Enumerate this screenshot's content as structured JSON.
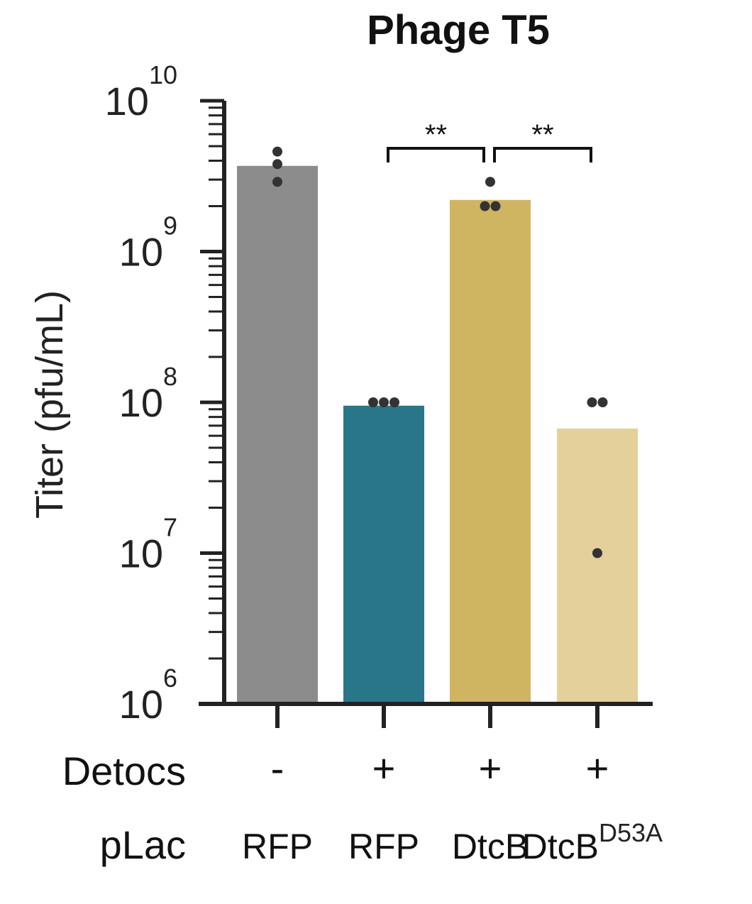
{
  "chart_data": {
    "type": "bar",
    "title": "Phage T5",
    "ylabel": "Titer (pfu/mL)",
    "xlabel": "",
    "yscale": "log",
    "ylim": [
      1000000,
      10000000000
    ],
    "yticks": [
      {
        "base": "10",
        "exp": "6",
        "value": 1000000
      },
      {
        "base": "10",
        "exp": "7",
        "value": 10000000
      },
      {
        "base": "10",
        "exp": "8",
        "value": 100000000
      },
      {
        "base": "10",
        "exp": "9",
        "value": 1000000000
      },
      {
        "base": "10",
        "exp": "10",
        "value": 10000000000
      }
    ],
    "row_labels": [
      "Detocs",
      "pLac"
    ],
    "categories": [
      {
        "detocs": "-",
        "plac": "RFP",
        "plac_sup": ""
      },
      {
        "detocs": "+",
        "plac": "RFP",
        "plac_sup": ""
      },
      {
        "detocs": "+",
        "plac": "DtcB",
        "plac_sup": ""
      },
      {
        "detocs": "+",
        "plac": "DtcB",
        "plac_sup": "D53A"
      }
    ],
    "values": [
      3700000000,
      95000000,
      2200000000,
      67000000
    ],
    "colors": [
      "#8c8c8c",
      "#297688",
      "#cfb462",
      "#e3d09b"
    ],
    "points": [
      [
        4600000000,
        3800000000,
        2900000000
      ],
      [
        100000000,
        100000000,
        100000000
      ],
      [
        2900000000,
        2000000000,
        2000000000
      ],
      [
        100000000,
        100000000,
        10000000
      ]
    ],
    "point_color": "#333333",
    "significance": [
      {
        "from": 1,
        "to": 2,
        "label": "**"
      },
      {
        "from": 2,
        "to": 3,
        "label": "**"
      }
    ],
    "grid": false,
    "legend": "none"
  }
}
